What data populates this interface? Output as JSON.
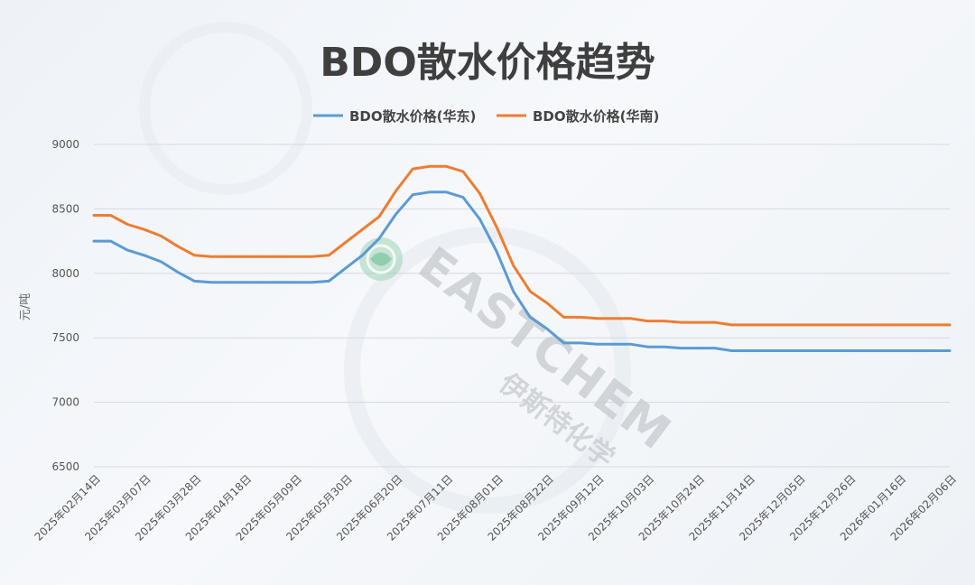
{
  "chart_data": {
    "type": "line",
    "title": "BDO散水价格趋势",
    "ylabel": "元/吨",
    "ylim": [
      6500,
      9000
    ],
    "yticks": [
      6500,
      7000,
      7500,
      8000,
      8500,
      9000
    ],
    "grid": true,
    "legend_position": "top",
    "x": [
      "2025年02月14日",
      "2025年02月21日",
      "2025年02月28日",
      "2025年03月07日",
      "2025年03月14日",
      "2025年03月21日",
      "2025年03月28日",
      "2025年04月04日",
      "2025年04月11日",
      "2025年04月18日",
      "2025年04月25日",
      "2025年05月02日",
      "2025年05月09日",
      "2025年05月16日",
      "2025年05月23日",
      "2025年05月30日",
      "2025年06月06日",
      "2025年06月13日",
      "2025年06月20日",
      "2025年06月27日",
      "2025年07月04日",
      "2025年07月11日",
      "2025年07月18日",
      "2025年07月25日",
      "2025年08月01日",
      "2025年08月08日",
      "2025年08月15日",
      "2025年08月22日",
      "2025年08月29日",
      "2025年09月05日",
      "2025年09月12日",
      "2025年09月19日",
      "2025年09月26日",
      "2025年10月03日",
      "2025年10月10日",
      "2025年10月17日",
      "2025年10月24日",
      "2025年10月31日",
      "2025年11月07日",
      "2025年11月14日",
      "2025年11月21日",
      "2025年11月28日",
      "2025年12月05日",
      "2025年12月12日",
      "2025年12月19日",
      "2025年12月26日",
      "2026年01月02日",
      "2026年01月09日",
      "2026年01月16日",
      "2026年01月23日",
      "2026年01月30日",
      "2026年02月06日"
    ],
    "xticks": [
      "2025年02月14日",
      "2025年03月07日",
      "2025年03月28日",
      "2025年04月18日",
      "2025年05月09日",
      "2025年05月30日",
      "2025年06月20日",
      "2025年07月11日",
      "2025年08月01日",
      "2025年08月22日",
      "2025年09月12日",
      "2025年10月03日",
      "2025年10月24日",
      "2025年11月14日",
      "2025年12月05日",
      "2025年12月26日",
      "2026年01月16日",
      "2026年02月06日"
    ],
    "series": [
      {
        "name": "BDO散水价格(华东)",
        "color": "#5b9bd5",
        "values": [
          8250,
          8250,
          8180,
          8140,
          8090,
          8010,
          7940,
          7930,
          7930,
          7930,
          7930,
          7930,
          7930,
          7930,
          7940,
          8040,
          8140,
          8270,
          8460,
          8610,
          8630,
          8630,
          8590,
          8420,
          8170,
          7860,
          7660,
          7570,
          7460,
          7460,
          7450,
          7450,
          7450,
          7430,
          7430,
          7420,
          7420,
          7420,
          7400,
          7400,
          7400,
          7400,
          7400,
          7400,
          7400,
          7400,
          7400,
          7400,
          7400,
          7400,
          7400,
          7400
        ]
      },
      {
        "name": "BDO散水价格(华南)",
        "color": "#ed7d31",
        "values": [
          8450,
          8450,
          8380,
          8340,
          8290,
          8210,
          8140,
          8130,
          8130,
          8130,
          8130,
          8130,
          8130,
          8130,
          8140,
          8240,
          8340,
          8440,
          8640,
          8810,
          8830,
          8830,
          8790,
          8620,
          8360,
          8060,
          7860,
          7770,
          7660,
          7660,
          7650,
          7650,
          7650,
          7630,
          7630,
          7620,
          7620,
          7620,
          7600,
          7600,
          7600,
          7600,
          7600,
          7600,
          7600,
          7600,
          7600,
          7600,
          7600,
          7600,
          7600,
          7600
        ]
      }
    ]
  },
  "watermark": {
    "brand": "EASTCHEM",
    "subtitle": "伊斯特化学"
  }
}
